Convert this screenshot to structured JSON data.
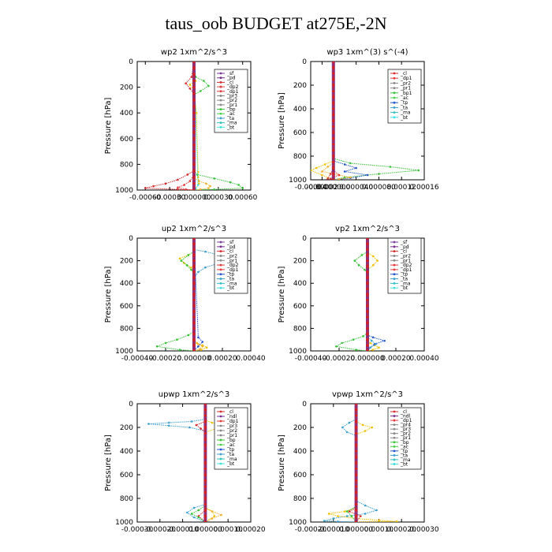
{
  "figure": {
    "title": "taus_oob  BUDGET at275E,-2N"
  },
  "colors": {
    "sf": "#7a3aa0",
    "pd": "#7a2f8f",
    "cl": "#d42d2d",
    "dp": "#e03a3a",
    "pr1": "#f0c000",
    "pr2": "#f0b030",
    "pr3": "#f5d000",
    "bp": "#38c438",
    "ac": "#48d048",
    "tp": "#2255cc",
    "ta": "#3aa0d0",
    "ma": "#30c0c0",
    "bt": "#40e0e0",
    "total": "#7a1f7f",
    "zero": "#d42020"
  },
  "chart_data": [
    {
      "id": "wp2",
      "type": "line",
      "title": "wp2   1xm^2/s^3",
      "xlabel": "",
      "ylabel": "Pressure [hPa]",
      "xlim": [
        -0.0007,
        0.0007
      ],
      "ylim": [
        1000,
        0
      ],
      "xticks": [
        "-0.00060",
        "-0.00030",
        "0.000000",
        "0.00030",
        "0.00060"
      ],
      "xtick_values": [
        -0.0006,
        -0.0003,
        0.0,
        0.0003,
        0.0006
      ],
      "yticks": [
        0,
        200,
        400,
        600,
        800,
        1000
      ],
      "legend": [
        "_sf",
        "_pd",
        "_cl",
        "_dp2",
        "_dp1",
        "_pr3",
        "_pr2",
        "_pr1",
        "_bp",
        "_ac",
        "_ta",
        "_ma",
        "_bt"
      ],
      "series": [
        {
          "name": "_pr1",
          "color": "pr1",
          "x": [
            0,
            0,
            2e-05,
            -5e-05,
            0,
            3e-05,
            5e-05,
            5e-05,
            6e-05,
            2e-05,
            0
          ],
          "y": [
            0,
            120,
            150,
            180,
            230,
            400,
            860,
            900,
            950,
            990,
            1000
          ]
        },
        {
          "name": "_bp",
          "color": "bp",
          "x": [
            0,
            2e-05,
            0.00012,
            0.00018,
            8e-05,
            0,
            0,
            4e-05,
            0.00025,
            0.00045,
            0.00055,
            0.0006,
            0.00025,
            0
          ],
          "y": [
            0,
            120,
            150,
            190,
            230,
            260,
            850,
            880,
            910,
            940,
            960,
            985,
            995,
            1000
          ]
        },
        {
          "name": "_cl",
          "color": "cl",
          "x": [
            0,
            -3e-05,
            -0.0001,
            -5e-05,
            0,
            0,
            -8e-05,
            -0.0002,
            -0.00035,
            -0.0005,
            -0.0006,
            -0.0002,
            0
          ],
          "y": [
            0,
            120,
            170,
            210,
            250,
            850,
            880,
            920,
            950,
            970,
            985,
            995,
            1000
          ]
        },
        {
          "name": "_dp2",
          "color": "dp",
          "x": [
            0,
            0,
            -5e-05,
            -0.00012,
            -0.0002,
            -0.0001,
            0
          ],
          "y": [
            0,
            880,
            930,
            960,
            980,
            995,
            1000
          ]
        },
        {
          "name": "_pr2",
          "color": "pr2",
          "x": [
            0,
            0,
            6e-05,
            0.00015,
            0.0002,
            0.00018,
            8e-05,
            0
          ],
          "y": [
            0,
            900,
            930,
            950,
            970,
            985,
            995,
            1000
          ]
        },
        {
          "name": "_bt",
          "color": "bt",
          "x": [
            0,
            5e-05,
            2e-05,
            0
          ],
          "y": [
            0,
            960,
            990,
            1000
          ]
        }
      ]
    },
    {
      "id": "wp3",
      "type": "line",
      "title": "wp3   1xm^(3) s^(-4)",
      "xlabel": "",
      "ylabel": "Pressure [hPa]",
      "xlim": [
        -4e-05,
        0.00016
      ],
      "ylim": [
        1000,
        0
      ],
      "xticks": [
        "-0.00004",
        "-0.00002",
        "0.000000",
        "0.000040",
        "0.000080",
        "0.00012",
        "0.00016"
      ],
      "xtick_values": [
        -4e-05,
        -2e-05,
        0.0,
        4e-05,
        8e-05,
        0.00012,
        0.00016
      ],
      "yticks": [
        0,
        200,
        400,
        600,
        800,
        1000
      ],
      "legend": [
        "_cl",
        "_dp1",
        "_pr2",
        "_pr1",
        "_bp1",
        "_ac",
        "_tp",
        "_ta",
        "_ma",
        "_bt"
      ],
      "series": [
        {
          "name": "_bp1",
          "color": "bp",
          "x": [
            0,
            0,
            3e-05,
            0.0001,
            0.00015,
            8e-05,
            2e-05,
            0
          ],
          "y": [
            0,
            820,
            860,
            890,
            920,
            950,
            980,
            1000
          ]
        },
        {
          "name": "_tp",
          "color": "tp",
          "x": [
            0,
            0,
            2e-05,
            4e-05,
            2e-05,
            6e-05,
            3e-05,
            0
          ],
          "y": [
            0,
            840,
            870,
            900,
            930,
            960,
            985,
            1000
          ]
        },
        {
          "name": "_pr1",
          "color": "pr1",
          "x": [
            0,
            0,
            -1.5e-05,
            -3e-05,
            -4e-05,
            -2e-05,
            0
          ],
          "y": [
            0,
            840,
            870,
            900,
            920,
            960,
            1000
          ]
        },
        {
          "name": "_pr2",
          "color": "pr2",
          "x": [
            0,
            0,
            -1e-05,
            -2e-05,
            1e-05,
            3e-05,
            1e-05,
            0
          ],
          "y": [
            0,
            860,
            890,
            930,
            960,
            980,
            995,
            1000
          ]
        },
        {
          "name": "_cl",
          "color": "cl",
          "x": [
            0,
            0,
            -5e-06,
            -1e-05,
            0
          ],
          "y": [
            0,
            900,
            950,
            990,
            1000
          ]
        },
        {
          "name": "_dp1",
          "color": "dp",
          "x": [
            0,
            0,
            1e-05,
            -5e-06,
            0
          ],
          "y": [
            0,
            920,
            960,
            990,
            1000
          ]
        }
      ]
    },
    {
      "id": "up2",
      "type": "line",
      "title": "up2   1xm^2/s^3",
      "xlabel": "",
      "ylabel": "Pressure [hPa]",
      "xlim": [
        -0.0004,
        0.0004
      ],
      "ylim": [
        1000,
        0
      ],
      "xticks": [
        "-0.00040",
        "-0.00020",
        "0.000000",
        "0.00020",
        "0.00040"
      ],
      "xtick_values": [
        -0.0004,
        -0.0002,
        0.0,
        0.0002,
        0.0004
      ],
      "yticks": [
        0,
        200,
        400,
        600,
        800,
        1000
      ],
      "legend": [
        "_sf",
        "_pd",
        "_cl",
        "_pr2",
        "_pr1",
        "_dp2",
        "_dp1",
        "_tp",
        "_ta",
        "_ma",
        "_bt"
      ],
      "series": [
        {
          "name": "_ta",
          "color": "ta",
          "x": [
            0,
            0,
            8e-05,
            0.00018,
            0.00026,
            0.00018,
            8e-05,
            3e-05,
            0
          ],
          "y": [
            0,
            100,
            120,
            150,
            180,
            220,
            260,
            300,
            350
          ]
        },
        {
          "name": "_pr1",
          "color": "pr1",
          "x": [
            0,
            0,
            -4e-05,
            -0.0001,
            -7e-05,
            -2e-05,
            0,
            0,
            2e-05,
            6e-05,
            9e-05,
            5e-05,
            0
          ],
          "y": [
            0,
            120,
            150,
            180,
            220,
            260,
            300,
            900,
            930,
            950,
            970,
            990,
            1000
          ]
        },
        {
          "name": "_dp2",
          "color": "bp",
          "x": [
            0,
            0,
            -4e-05,
            -9e-05,
            -5e-05,
            -2e-05,
            0,
            0,
            -4e-05,
            -0.00012,
            -0.0002,
            -0.00026,
            -0.0001,
            0
          ],
          "y": [
            0,
            120,
            150,
            200,
            240,
            280,
            320,
            830,
            860,
            900,
            930,
            960,
            990,
            1000
          ]
        },
        {
          "name": "_pr2",
          "color": "pr2",
          "x": [
            0,
            0,
            3e-05,
            6e-05,
            4e-05,
            0
          ],
          "y": [
            0,
            900,
            940,
            960,
            985,
            1000
          ]
        },
        {
          "name": "_tp",
          "color": "tp",
          "x": [
            0,
            3e-05,
            6e-05,
            3e-05,
            0
          ],
          "y": [
            0,
            880,
            920,
            960,
            1000
          ]
        }
      ]
    },
    {
      "id": "vp2",
      "type": "line",
      "title": "vp2   1xm^2/s^3",
      "xlabel": "",
      "ylabel": "Pressure [hPa]",
      "xlim": [
        -0.0004,
        0.0004
      ],
      "ylim": [
        1000,
        0
      ],
      "xticks": [
        "-0.00040",
        "-0.00020",
        "0.000000",
        "0.00020",
        "0.00040"
      ],
      "xtick_values": [
        -0.0004,
        -0.0002,
        0.0,
        0.0002,
        0.0004
      ],
      "yticks": [
        0,
        200,
        400,
        600,
        800,
        1000
      ],
      "legend": [
        "_sf",
        "_pd",
        "_cl",
        "_pr2",
        "_pr1",
        "_dp2",
        "_dp1",
        "_tp",
        "_ta",
        "_ma",
        "_bt"
      ],
      "series": [
        {
          "name": "_dp2",
          "color": "bp",
          "x": [
            0,
            0,
            -4e-05,
            -9e-05,
            -6e-05,
            -2e-05,
            0,
            0,
            -3e-05,
            -0.0001,
            -0.00018,
            -0.00022,
            -8e-05,
            0
          ],
          "y": [
            0,
            120,
            150,
            200,
            240,
            280,
            320,
            840,
            870,
            900,
            930,
            960,
            990,
            1000
          ]
        },
        {
          "name": "_pr1",
          "color": "pr1",
          "x": [
            0,
            0,
            4e-05,
            7e-05,
            4e-05,
            0,
            0,
            2e-05,
            5e-05,
            8e-05,
            4e-05,
            0
          ],
          "y": [
            0,
            130,
            160,
            200,
            240,
            280,
            900,
            930,
            950,
            970,
            990,
            1000
          ]
        },
        {
          "name": "_tp",
          "color": "tp",
          "x": [
            0,
            0,
            4e-05,
            0.00012,
            5e-05,
            2e-05,
            0
          ],
          "y": [
            0,
            860,
            880,
            910,
            940,
            970,
            1000
          ]
        },
        {
          "name": "_ta",
          "color": "ta",
          "x": [
            0,
            0,
            3e-05,
            6e-05,
            2e-05,
            0
          ],
          "y": [
            0,
            880,
            910,
            940,
            970,
            1000
          ]
        }
      ]
    },
    {
      "id": "upwp",
      "type": "line",
      "title": "upwp   1xm^2/s^3",
      "xlabel": "",
      "ylabel": "Pressure [hPa]",
      "xlim": [
        -0.0003,
        0.0002
      ],
      "ylim": [
        1000,
        0
      ],
      "xticks": [
        "-0.00030",
        "-0.00020",
        "-0.00010",
        "0.000000",
        "0.00010",
        "0.00020"
      ],
      "xtick_values": [
        -0.0003,
        -0.0002,
        -0.0001,
        0.0,
        0.0001,
        0.0002
      ],
      "yticks": [
        0,
        200,
        400,
        600,
        800,
        1000
      ],
      "legend": [
        "_cl",
        "_ndl",
        "_dp1",
        "_pr3",
        "_pr2",
        "_pr1",
        "_bp",
        "_ac",
        "_tp",
        "_ta",
        "_ma",
        "_bt"
      ],
      "series": [
        {
          "name": "_tp",
          "color": "ta",
          "x": [
            0,
            0,
            -6e-05,
            -0.00016,
            -0.00025,
            -0.00016,
            -7e-05,
            0,
            0,
            -5e-05,
            -8e-05,
            -5e-05,
            0
          ],
          "y": [
            0,
            130,
            150,
            160,
            170,
            185,
            200,
            230,
            850,
            880,
            920,
            960,
            1000
          ]
        },
        {
          "name": "_pr3",
          "color": "pr1",
          "x": [
            0,
            0,
            3e-05,
            8e-05,
            5e-05,
            0,
            0,
            3e-05,
            4e-05,
            0
          ],
          "y": [
            0,
            140,
            160,
            180,
            210,
            240,
            880,
            910,
            950,
            1000
          ]
        },
        {
          "name": "_cl",
          "color": "cl",
          "x": [
            0,
            0,
            -4e-05,
            -2e-05,
            0,
            0,
            -3e-05,
            0
          ],
          "y": [
            0,
            150,
            180,
            210,
            240,
            900,
            950,
            1000
          ]
        },
        {
          "name": "_bp",
          "color": "bp",
          "x": [
            0,
            0,
            -3e-05,
            -6e-05,
            -3e-05,
            0
          ],
          "y": [
            0,
            860,
            900,
            930,
            960,
            1000
          ]
        },
        {
          "name": "_pr1",
          "color": "pr2",
          "x": [
            0,
            0,
            3e-05,
            7e-05,
            3e-05,
            0
          ],
          "y": [
            0,
            880,
            910,
            940,
            970,
            1000
          ]
        }
      ]
    },
    {
      "id": "vpwp",
      "type": "line",
      "title": "vpwp   1xm^2/s^3",
      "xlabel": "",
      "ylabel": "Pressure [hPa]",
      "xlim": [
        -0.0002,
        0.0003
      ],
      "ylim": [
        1000,
        0
      ],
      "xticks": [
        "-0.00020",
        "-0.00010",
        "0.000000",
        "0.00010",
        "0.00020",
        "0.00030"
      ],
      "xtick_values": [
        -0.0002,
        -0.0001,
        0.0,
        0.0001,
        0.0002,
        0.0003
      ],
      "yticks": [
        0,
        200,
        400,
        600,
        800,
        1000
      ],
      "legend": [
        "_cl",
        "_ndl",
        "_dp1",
        "_pr4",
        "_pr3",
        "_pr2",
        "_pr1",
        "_bp",
        "_ac",
        "_tp",
        "_ta",
        "_ma",
        "_bt"
      ],
      "series": [
        {
          "name": "_tp",
          "color": "ta",
          "x": [
            0,
            0,
            -3e-05,
            -6e-05,
            -4e-05,
            0,
            0,
            4e-05,
            9e-05,
            4e-05,
            -4e-05,
            -0.0001,
            -0.00014,
            -8e-05,
            0
          ],
          "y": [
            0,
            130,
            160,
            200,
            240,
            270,
            820,
            860,
            900,
            930,
            950,
            970,
            990,
            996,
            1000
          ]
        },
        {
          "name": "_pr2",
          "color": "pr1",
          "x": [
            0,
            0,
            3e-05,
            7e-05,
            4e-05,
            0,
            0,
            -5e-05,
            -0.00012,
            -8e-05,
            0,
            0.0001,
            0.00018,
            0
          ],
          "y": [
            0,
            150,
            180,
            200,
            230,
            260,
            880,
            910,
            930,
            950,
            970,
            985,
            995,
            1000
          ]
        },
        {
          "name": "_cl",
          "color": "cl",
          "x": [
            0,
            0,
            -3e-05,
            2e-05,
            0
          ],
          "y": [
            0,
            880,
            910,
            950,
            1000
          ]
        },
        {
          "name": "_bp",
          "color": "bp",
          "x": [
            0,
            0,
            -4e-05,
            -2e-05,
            0
          ],
          "y": [
            0,
            870,
            910,
            950,
            1000
          ]
        }
      ]
    }
  ]
}
